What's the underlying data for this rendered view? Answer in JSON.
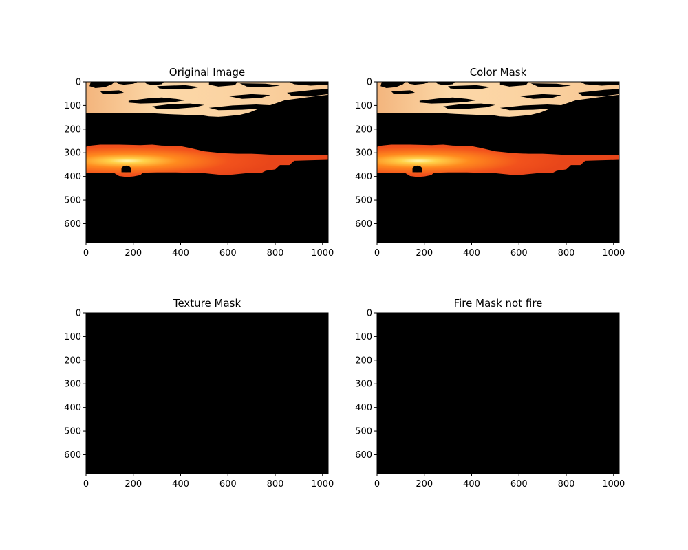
{
  "figure": {
    "background": "#ffffff",
    "text_color": "#000000"
  },
  "chart_data": [
    {
      "type": "image",
      "title": "Original Image",
      "content": "sunset-scene",
      "xlim": [
        0,
        1024
      ],
      "ylim": [
        680,
        0
      ],
      "x_ticks": [
        0,
        200,
        400,
        600,
        800,
        1000
      ],
      "y_ticks": [
        0,
        100,
        200,
        300,
        400,
        500,
        600
      ]
    },
    {
      "type": "image",
      "title": "Color Mask",
      "content": "sunset-scene",
      "xlim": [
        0,
        1024
      ],
      "ylim": [
        680,
        0
      ],
      "x_ticks": [
        0,
        200,
        400,
        600,
        800,
        1000
      ],
      "y_ticks": [
        0,
        100,
        200,
        300,
        400,
        500,
        600
      ]
    },
    {
      "type": "image",
      "title": "Texture Mask",
      "content": "black",
      "xlim": [
        0,
        1024
      ],
      "ylim": [
        680,
        0
      ],
      "x_ticks": [
        0,
        200,
        400,
        600,
        800,
        1000
      ],
      "y_ticks": [
        0,
        100,
        200,
        300,
        400,
        500,
        600
      ]
    },
    {
      "type": "image",
      "title": "Fire Mask not fire",
      "content": "black",
      "xlim": [
        0,
        1024
      ],
      "ylim": [
        680,
        0
      ],
      "x_ticks": [
        0,
        200,
        400,
        600,
        800,
        1000
      ],
      "y_ticks": [
        0,
        100,
        200,
        300,
        400,
        500,
        600
      ]
    }
  ]
}
